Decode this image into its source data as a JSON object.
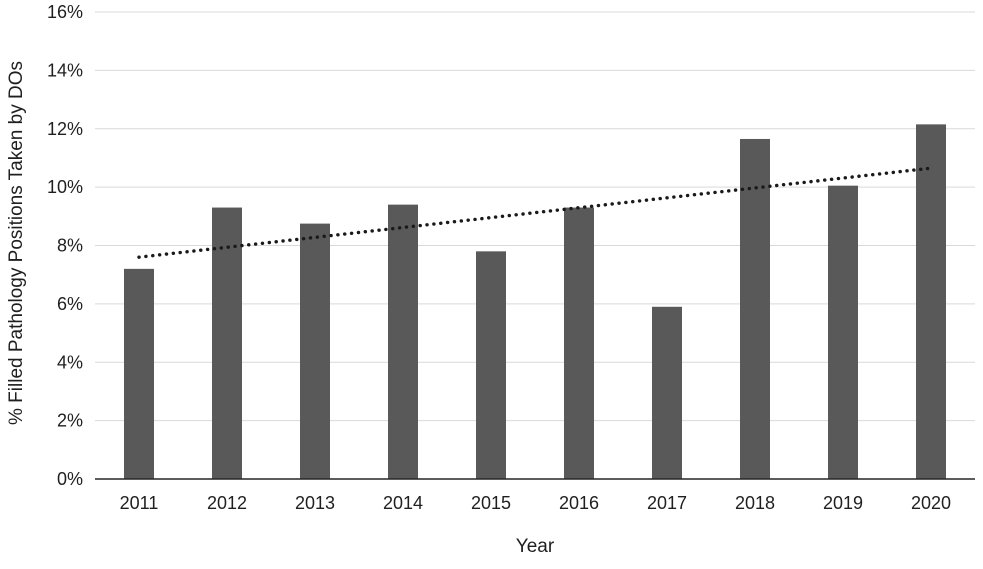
{
  "chart_data": {
    "type": "bar",
    "categories": [
      "2011",
      "2012",
      "2013",
      "2014",
      "2015",
      "2016",
      "2017",
      "2018",
      "2019",
      "2020"
    ],
    "values": [
      7.2,
      9.3,
      8.75,
      9.4,
      7.8,
      9.3,
      5.9,
      11.65,
      10.05,
      12.15
    ],
    "trendline": {
      "start": 7.6,
      "end": 10.65,
      "style": "dotted"
    },
    "title": "",
    "xlabel": "Year",
    "ylabel": "% Filled Pathology Positions Taken by DOs",
    "ylim": [
      0,
      16
    ],
    "ytick_step": 2,
    "ytick_suffix": "%",
    "grid": true,
    "legend": "none",
    "colors": {
      "bar": "#595959",
      "gridline": "#d9d9d9",
      "axis": "#262626",
      "trendline": "#1a1a1a",
      "text": "#1f1f1f"
    }
  }
}
